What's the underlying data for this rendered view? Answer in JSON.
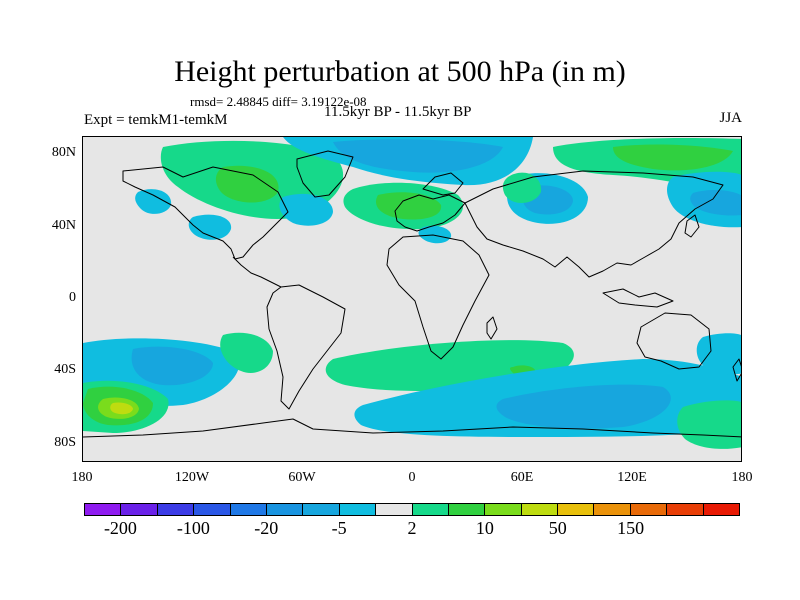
{
  "title": "Height perturbation at 500 hPa (in m)",
  "stats": "rmsd= 2.48845 diff= 3.19122e-08",
  "left_label": "Expt = temkM1-temkM",
  "center_label": "11.5kyr BP - 11.5kyr BP",
  "right_label": "JJA",
  "lat_ticks": [
    {
      "label": "80N",
      "value": 80
    },
    {
      "label": "40N",
      "value": 40
    },
    {
      "label": "0",
      "value": 0
    },
    {
      "label": "40S",
      "value": -40
    },
    {
      "label": "80S",
      "value": -80
    }
  ],
  "lon_ticks": [
    {
      "label": "180",
      "value": -180
    },
    {
      "label": "120W",
      "value": -120
    },
    {
      "label": "60W",
      "value": -60
    },
    {
      "label": "0",
      "value": 0
    },
    {
      "label": "60E",
      "value": 60
    },
    {
      "label": "120E",
      "value": 120
    },
    {
      "label": "180",
      "value": 180
    }
  ],
  "map_extent": {
    "lon": [
      -180,
      180
    ],
    "lat": [
      -90,
      90
    ]
  },
  "colorbar": {
    "colors": [
      "#8f1bf0",
      "#6a21e8",
      "#3c3ce6",
      "#2a57e6",
      "#1f78e6",
      "#1994e0",
      "#17a6de",
      "#10bde0",
      "#e6e6e6",
      "#16d98a",
      "#30d040",
      "#7adc1c",
      "#bedc10",
      "#e8c00c",
      "#ea920a",
      "#e86a08",
      "#e83e06",
      "#e81a04"
    ],
    "labels": [
      {
        "text": "-200",
        "after_box": 1
      },
      {
        "text": "-100",
        "after_box": 3
      },
      {
        "text": "-20",
        "after_box": 5
      },
      {
        "text": "-5",
        "after_box": 7
      },
      {
        "text": "2",
        "after_box": 9
      },
      {
        "text": "10",
        "after_box": 11
      },
      {
        "text": "50",
        "after_box": 13
      },
      {
        "text": "150",
        "after_box": 15
      }
    ]
  },
  "field_colors": {
    "green": "#16d98a",
    "green2": "#30d040",
    "green3": "#7adc1c",
    "yellow": "#bedc10",
    "blue1": "#10bde0",
    "blue2": "#17a6de"
  }
}
